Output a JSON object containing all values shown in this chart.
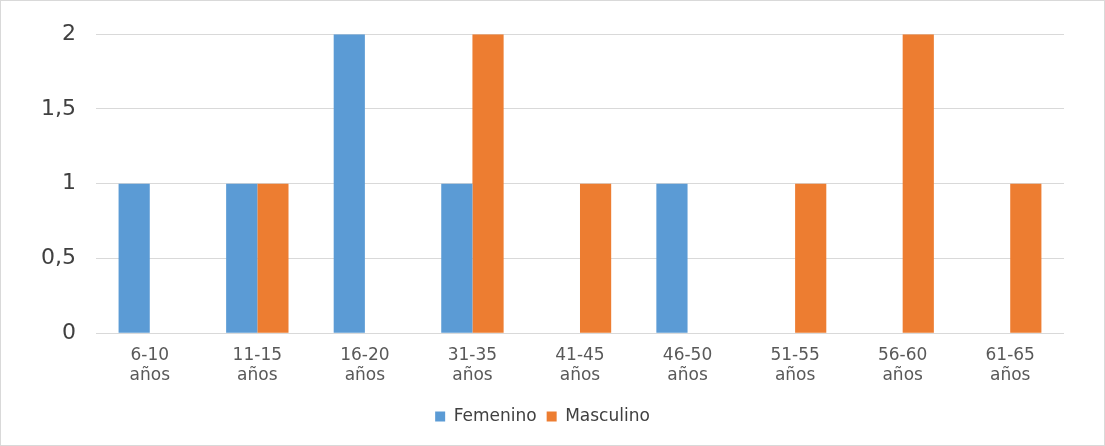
{
  "chart_data": {
    "type": "bar",
    "categories": [
      "6-10 años",
      "11-15 años",
      "16-20 años",
      "31-35 años",
      "41-45 años",
      "46-50 años",
      "51-55 años",
      "56-60 años",
      "61-65 años"
    ],
    "series": [
      {
        "name": "Femenino",
        "color": "#5b9bd5",
        "values": [
          1,
          1,
          2,
          1,
          null,
          1,
          null,
          null,
          null
        ]
      },
      {
        "name": "Masculino",
        "color": "#ed7d31",
        "values": [
          null,
          1,
          null,
          2,
          1,
          null,
          1,
          2,
          1
        ]
      }
    ],
    "ylim": [
      0,
      2
    ],
    "yticks": [
      0,
      {
        "value": 0.5,
        "label": "0,5"
      },
      1,
      {
        "value": 1.5,
        "label": "1,5"
      },
      2
    ],
    "grid": "y",
    "legend": "bottom"
  }
}
